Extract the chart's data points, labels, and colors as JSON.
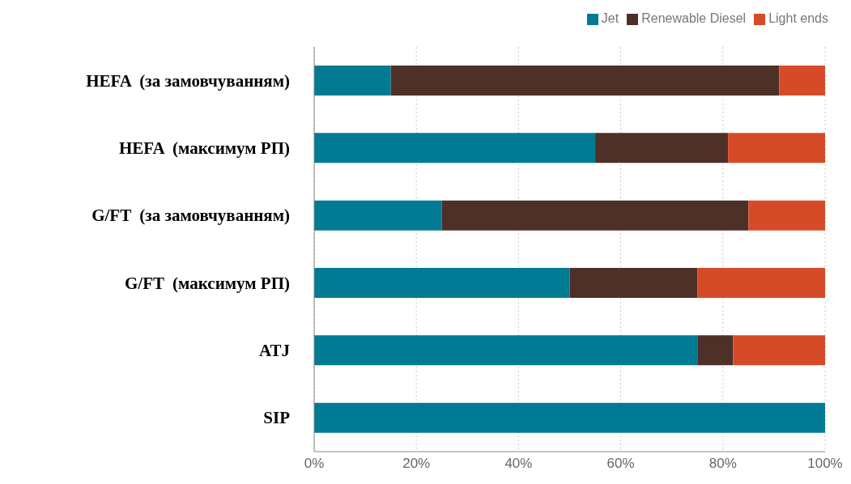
{
  "chart_data": {
    "type": "bar",
    "orientation": "horizontal",
    "stacked": true,
    "categories": [
      "HEFA  (за замовчуванням)",
      "HEFA  (максимум РП)",
      "G/FT  (за замовчуванням)",
      "G/FT  (максимум РП)",
      "ATJ",
      "SIP"
    ],
    "series": [
      {
        "name": "Jet",
        "color": "#007b93",
        "values": [
          15,
          55,
          25,
          50,
          75,
          100
        ]
      },
      {
        "name": "Renewable Diesel",
        "color": "#4e3028",
        "values": [
          76,
          26,
          60,
          25,
          7,
          0
        ]
      },
      {
        "name": "Light ends",
        "color": "#d64b27",
        "values": [
          9,
          19,
          15,
          25,
          18,
          0
        ]
      }
    ],
    "xlim": [
      0,
      100
    ],
    "xticks": [
      {
        "value": 0,
        "label": "0%"
      },
      {
        "value": 20,
        "label": "20%"
      },
      {
        "value": 40,
        "label": "40%"
      },
      {
        "value": 60,
        "label": "60%"
      },
      {
        "value": 80,
        "label": "80%"
      },
      {
        "value": 100,
        "label": "100%"
      }
    ],
    "grid": "x",
    "legend": "top right"
  }
}
